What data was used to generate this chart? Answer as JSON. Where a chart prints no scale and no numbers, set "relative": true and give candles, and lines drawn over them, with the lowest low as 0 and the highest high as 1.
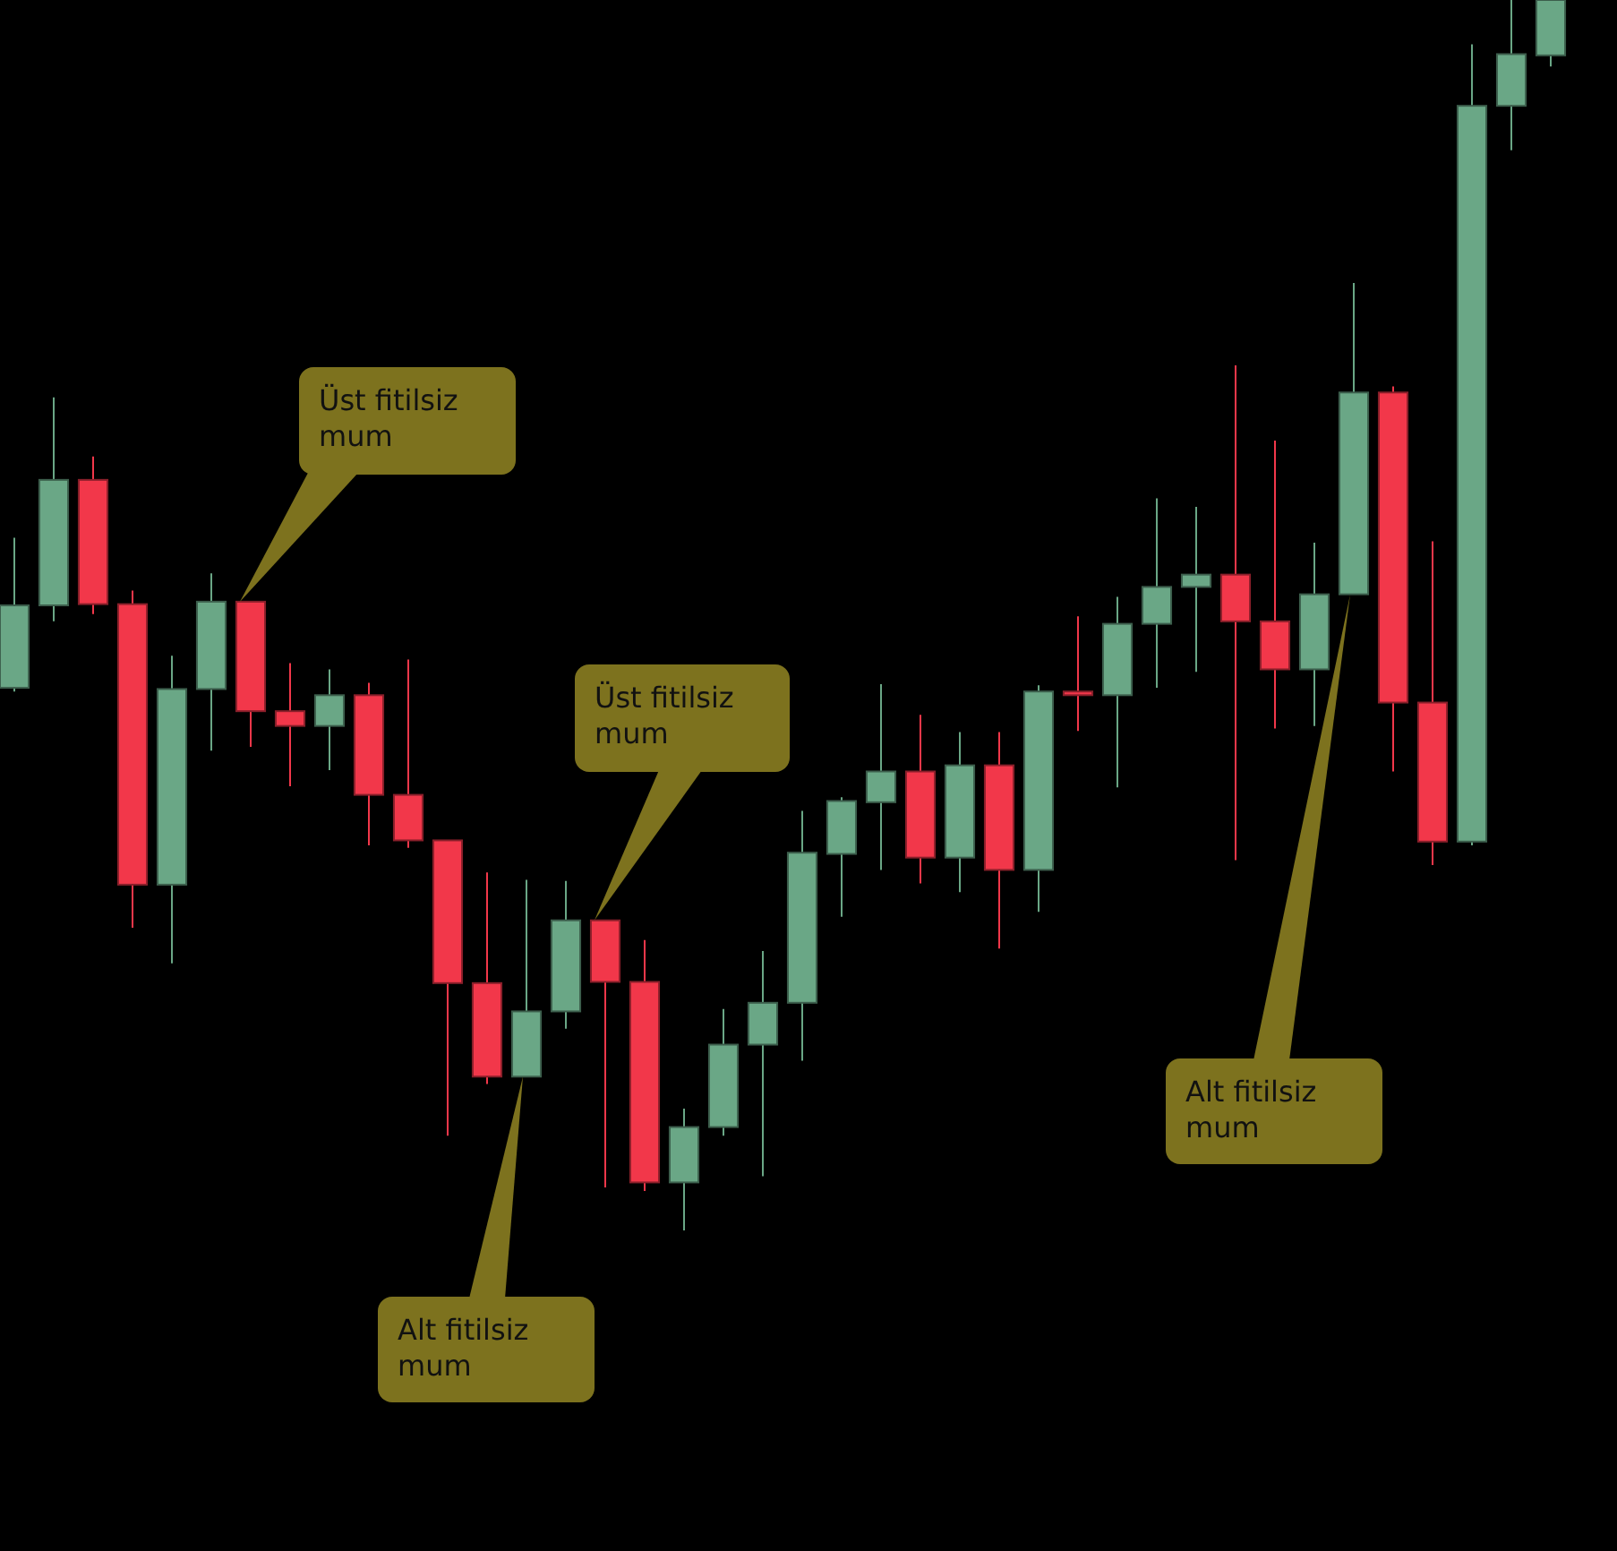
{
  "chart_data": {
    "type": "candlestick",
    "relative": true,
    "categories": [
      null,
      null,
      null,
      null,
      null,
      null,
      null,
      null,
      null,
      null,
      null,
      null,
      null,
      null,
      null,
      null,
      null,
      null,
      null,
      null,
      null,
      null,
      null,
      null,
      null,
      null,
      null,
      null,
      null,
      null,
      null,
      null,
      null,
      null,
      null,
      null,
      null,
      null,
      null,
      null
    ],
    "ohlc": [
      [
        0.441,
        0.563,
        0.438,
        0.508
      ],
      [
        0.508,
        0.677,
        0.495,
        0.61
      ],
      [
        0.61,
        0.629,
        0.501,
        0.509
      ],
      [
        0.509,
        0.52,
        0.246,
        0.281
      ],
      [
        0.281,
        0.467,
        0.217,
        0.44
      ],
      [
        0.44,
        0.534,
        0.39,
        0.511
      ],
      [
        0.511,
        0.511,
        0.393,
        0.422
      ],
      [
        0.422,
        0.461,
        0.361,
        0.41
      ],
      [
        0.41,
        0.456,
        0.374,
        0.435
      ],
      [
        0.435,
        0.445,
        0.313,
        0.354
      ],
      [
        0.354,
        0.464,
        0.311,
        0.317
      ],
      [
        0.317,
        0.317,
        0.077,
        0.201
      ],
      [
        0.201,
        0.291,
        0.119,
        0.125
      ],
      [
        0.125,
        0.285,
        0.125,
        0.178
      ],
      [
        0.178,
        0.284,
        0.164,
        0.252
      ],
      [
        0.252,
        0.252,
        0.035,
        0.202
      ],
      [
        0.202,
        0.236,
        0.032,
        0.039
      ],
      [
        0.039,
        0.099,
        0,
        0.084
      ],
      [
        0.084,
        0.18,
        0.077,
        0.151
      ],
      [
        0.151,
        0.227,
        0.044,
        0.185
      ],
      [
        0.185,
        0.341,
        0.138,
        0.307
      ],
      [
        0.306,
        0.352,
        0.255,
        0.349
      ],
      [
        0.348,
        0.444,
        0.293,
        0.373
      ],
      [
        0.373,
        0.419,
        0.282,
        0.303
      ],
      [
        0.303,
        0.405,
        0.275,
        0.378
      ],
      [
        0.378,
        0.405,
        0.229,
        0.293
      ],
      [
        0.293,
        0.443,
        0.259,
        0.438
      ],
      [
        0.438,
        0.499,
        0.406,
        0.435
      ],
      [
        0.435,
        0.515,
        0.36,
        0.493
      ],
      [
        0.493,
        0.595,
        0.441,
        0.523
      ],
      [
        0.523,
        0.588,
        0.454,
        0.533
      ],
      [
        0.533,
        0.703,
        0.301,
        0.495
      ],
      [
        0.495,
        0.642,
        0.408,
        0.456
      ],
      [
        0.456,
        0.559,
        0.41,
        0.517
      ],
      [
        0.517,
        0.77,
        0.517,
        0.681
      ],
      [
        0.681,
        0.686,
        0.373,
        0.429
      ],
      [
        0.429,
        0.56,
        0.297,
        0.316
      ],
      [
        0.316,
        0.964,
        0.313,
        0.914
      ],
      [
        0.914,
        1,
        0.878,
        0.956
      ],
      [
        0.955,
        1,
        0.946,
        1
      ]
    ],
    "colors": [
      "#6aa786",
      "#6aa786",
      "#f2374a",
      "#f2374a",
      "#6aa786",
      "#6aa786",
      "#f2374a",
      "#f2374a",
      "#6aa786",
      "#f2374a",
      "#f2374a",
      "#f2374a",
      "#f2374a",
      "#6aa786",
      "#6aa786",
      "#f2374a",
      "#f2374a",
      "#6aa786",
      "#6aa786",
      "#6aa786",
      "#6aa786",
      "#6aa786",
      "#6aa786",
      "#f2374a",
      "#6aa786",
      "#f2374a",
      "#6aa786",
      "#f2374a",
      "#6aa786",
      "#6aa786",
      "#6aa786",
      "#f2374a",
      "#f2374a",
      "#6aa786",
      "#6aa786",
      "#f2374a",
      "#f2374a",
      "#6aa786",
      "#6aa786",
      "#6aa786"
    ],
    "annotations": [
      "Üst fitilsiz mum",
      "Üst fitilsiz mum",
      "Alt fitilsiz mum",
      "Alt fitilsiz mum"
    ]
  }
}
